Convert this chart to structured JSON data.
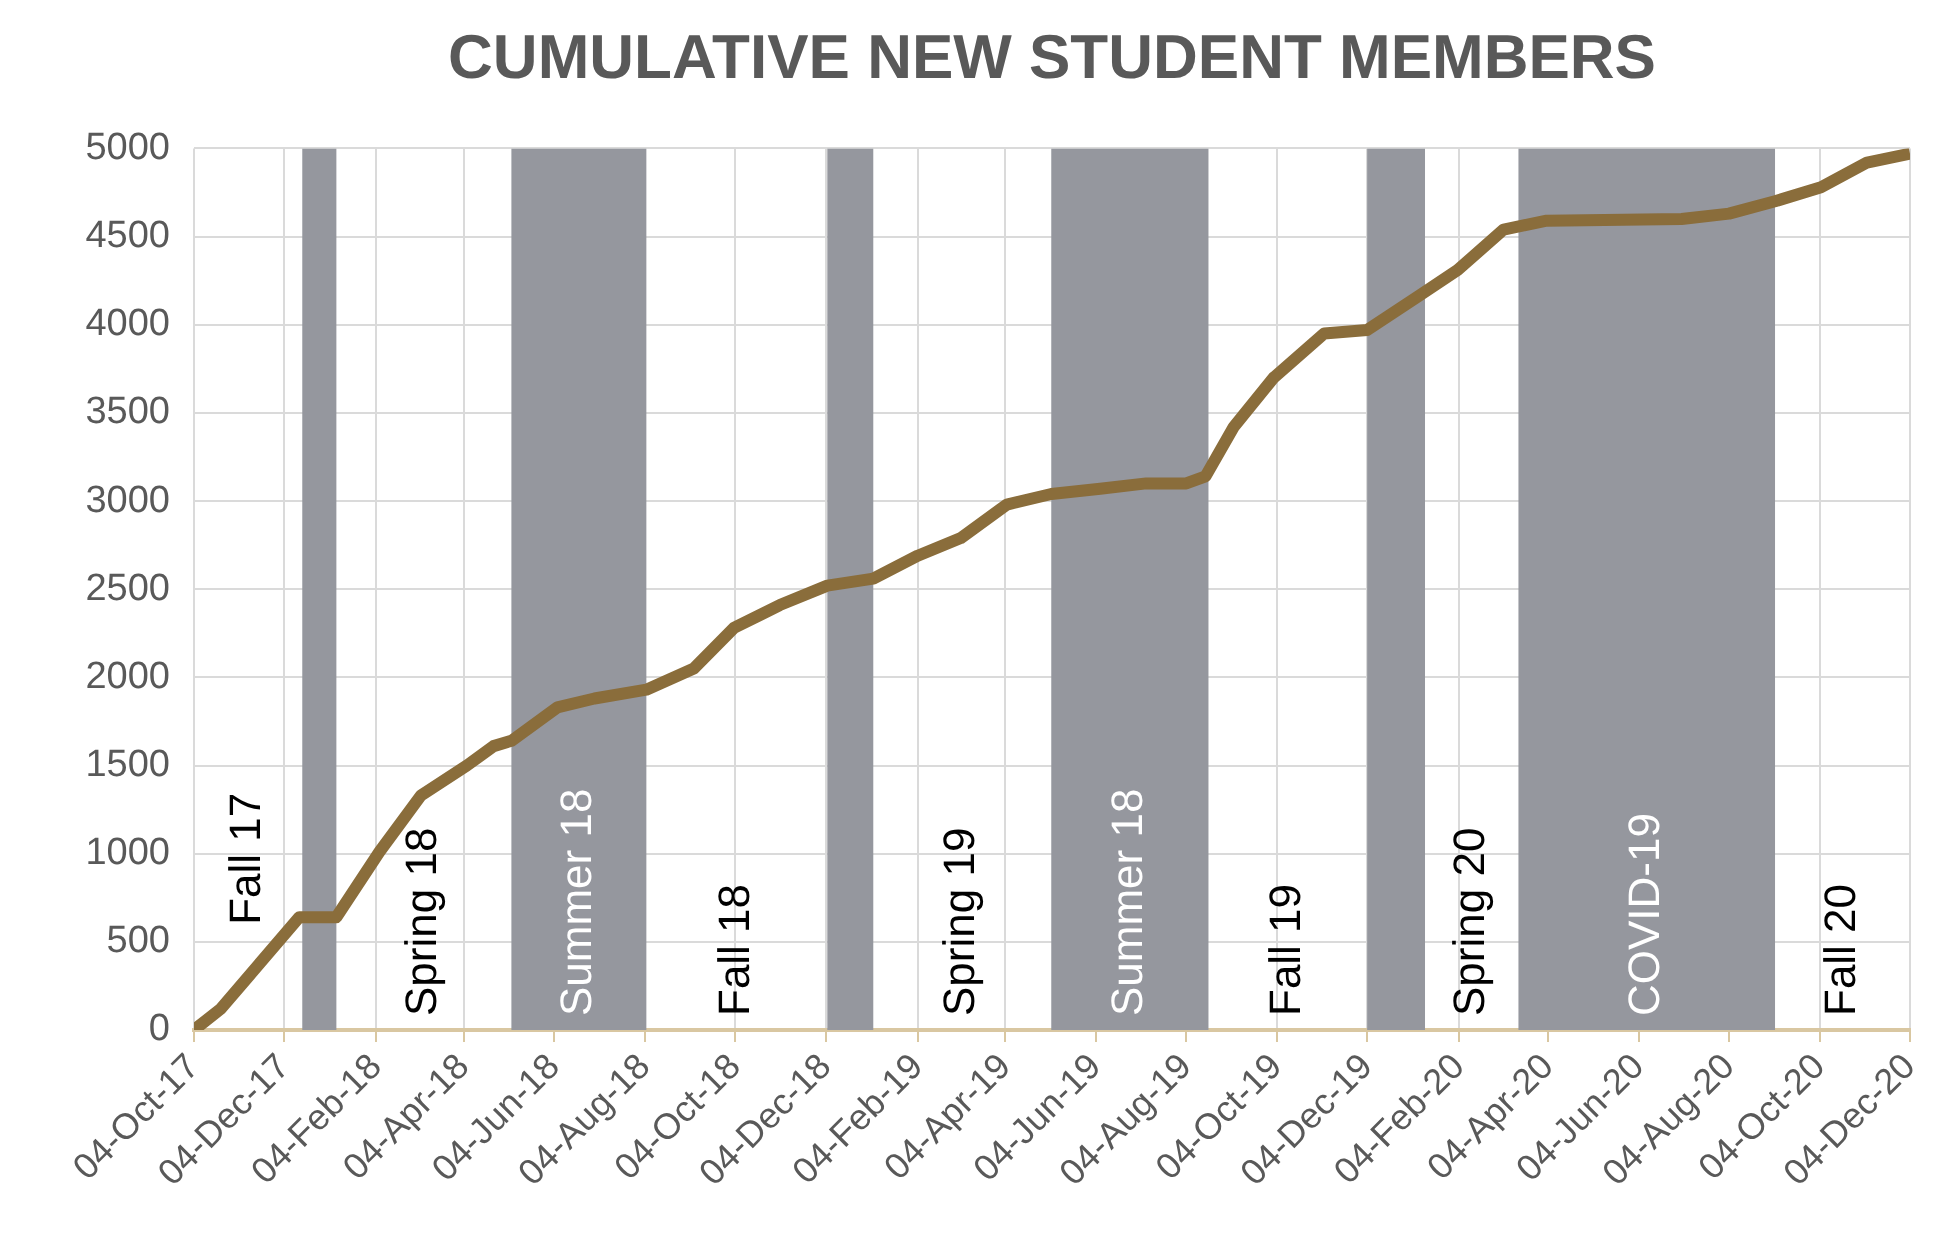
{
  "chart_data": {
    "type": "line",
    "title": "CUMULATIVE NEW STUDENT MEMBERS",
    "x": [
      "2017-10-04",
      "2017-10-22",
      "2017-12-14",
      "2018-01-08",
      "2018-02-06",
      "2018-03-06",
      "2018-04-06",
      "2018-04-24",
      "2018-05-06",
      "2018-06-06",
      "2018-07-01",
      "2018-08-05",
      "2018-09-06",
      "2018-10-03",
      "2018-11-03",
      "2018-12-05",
      "2019-01-05",
      "2019-02-04",
      "2019-03-05",
      "2019-04-05",
      "2019-05-05",
      "2019-06-07",
      "2019-07-08",
      "2019-08-04",
      "2019-08-17",
      "2019-09-05",
      "2019-10-02",
      "2019-11-05",
      "2019-12-04",
      "2020-01-09",
      "2020-02-03",
      "2020-03-05",
      "2020-04-03",
      "2020-07-03",
      "2020-08-04",
      "2020-09-04",
      "2020-10-05",
      "2020-11-05",
      "2020-12-04"
    ],
    "series": [
      {
        "color": "#8a6d3b",
        "values": [
          0,
          120,
          640,
          640,
          1010,
          1330,
          1500,
          1610,
          1640,
          1830,
          1880,
          1930,
          2050,
          2280,
          2410,
          2520,
          2560,
          2690,
          2790,
          2980,
          3040,
          3070,
          3100,
          3100,
          3140,
          3420,
          3700,
          3950,
          3970,
          4170,
          4310,
          4540,
          4590,
          4600,
          4630,
          4700,
          4780,
          4920,
          4970
        ]
      }
    ],
    "xlim": [
      "2017-10-04",
      "2020-12-04"
    ],
    "xticks": [
      {
        "value": "2017-10-04",
        "label": "04-Oct-17"
      },
      {
        "value": "2017-12-04",
        "label": "04-Dec-17"
      },
      {
        "value": "2018-02-04",
        "label": "04-Feb-18"
      },
      {
        "value": "2018-04-04",
        "label": "04-Apr-18"
      },
      {
        "value": "2018-06-04",
        "label": "04-Jun-18"
      },
      {
        "value": "2018-08-04",
        "label": "04-Aug-18"
      },
      {
        "value": "2018-10-04",
        "label": "04-Oct-18"
      },
      {
        "value": "2018-12-04",
        "label": "04-Dec-18"
      },
      {
        "value": "2019-02-04",
        "label": "04-Feb-19"
      },
      {
        "value": "2019-04-04",
        "label": "04-Apr-19"
      },
      {
        "value": "2019-06-04",
        "label": "04-Jun-19"
      },
      {
        "value": "2019-08-04",
        "label": "04-Aug-19"
      },
      {
        "value": "2019-10-04",
        "label": "04-Oct-19"
      },
      {
        "value": "2019-12-04",
        "label": "04-Dec-19"
      },
      {
        "value": "2020-02-04",
        "label": "04-Feb-20"
      },
      {
        "value": "2020-04-04",
        "label": "04-Apr-20"
      },
      {
        "value": "2020-06-04",
        "label": "04-Jun-20"
      },
      {
        "value": "2020-08-04",
        "label": "04-Aug-20"
      },
      {
        "value": "2020-10-04",
        "label": "04-Oct-20"
      },
      {
        "value": "2020-12-04",
        "label": "04-Dec-20"
      }
    ],
    "ylim": [
      0,
      5000
    ],
    "yticks": [
      0,
      500,
      1000,
      1500,
      2000,
      2500,
      3000,
      3500,
      4000,
      4500,
      5000
    ],
    "grid": true,
    "marker": "none",
    "line_style": "solid",
    "bands": [
      {
        "axis": "x",
        "from": "2017-12-16",
        "to": "2018-01-08",
        "color": "#95979e"
      },
      {
        "axis": "x",
        "from": "2018-05-06",
        "to": "2018-08-05",
        "label": "Summer 18",
        "color": "#95979e"
      },
      {
        "axis": "x",
        "from": "2018-12-05",
        "to": "2019-01-05",
        "color": "#95979e"
      },
      {
        "axis": "x",
        "from": "2019-05-05",
        "to": "2019-08-19",
        "label": "Summer 18",
        "color": "#95979e"
      },
      {
        "axis": "x",
        "from": "2019-12-04",
        "to": "2020-01-12",
        "color": "#95979e"
      },
      {
        "axis": "x",
        "from": "2020-03-15",
        "to": "2020-09-04",
        "label": "COVID-19",
        "color": "#95979e"
      }
    ],
    "annotations": [
      "Fall 17",
      "Spring 18",
      "Fall 18",
      "Spring 19",
      "Fall 19",
      "Spring 20",
      "Fall 20"
    ]
  }
}
